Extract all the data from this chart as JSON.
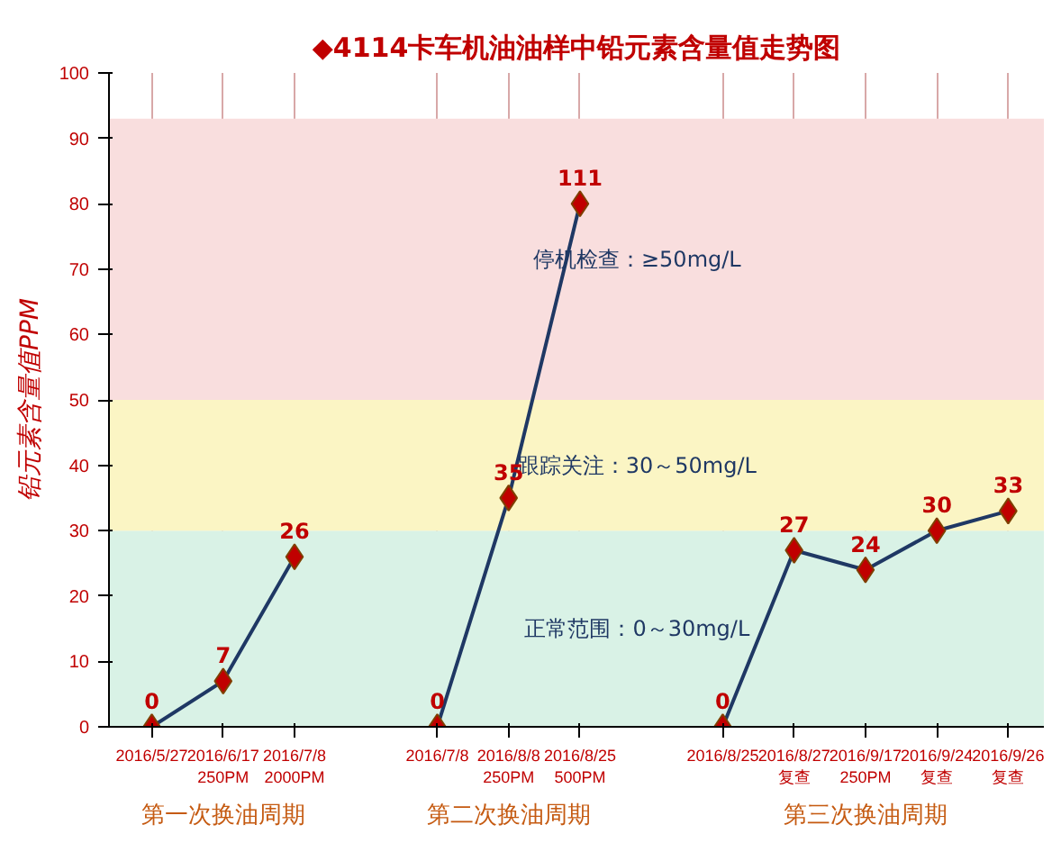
{
  "chart_data": {
    "type": "line",
    "title": "◆4114卡车机油油样中铅元素含量值走势图",
    "ylabel": "铅元素含量值PPM",
    "categories": [
      "2016/5/27",
      "2016/6/17\n250PM",
      "2016/7/8\n2000PM",
      null,
      "2016/7/8",
      "2016/8/8\n250PM",
      "2016/8/25\n500PM",
      null,
      "2016/8/25",
      "2016/8/27\n复查",
      "2016/9/17\n250PM",
      "2016/9/24\n复查",
      "2016/9/26\n复查"
    ],
    "series": [
      {
        "color": "#1f3864",
        "values": [
          0,
          7,
          26,
          null,
          0,
          35,
          80,
          null,
          0,
          27,
          24,
          30,
          33
        ],
        "colors": [
          "#c00000",
          "#c00000",
          "#c00000",
          null,
          "#c00000",
          "#c00000",
          "#c00000",
          null,
          "#c00000",
          "#c00000",
          "#c00000",
          "#c00000",
          "#c00000"
        ],
        "value_labels": [
          "0",
          "7",
          "26",
          null,
          "0",
          "35",
          null,
          null,
          "0",
          "27",
          "24",
          "30",
          "33"
        ]
      }
    ],
    "ylim": [
      0,
      100
    ],
    "yticks": [
      0,
      10,
      20,
      30,
      40,
      50,
      60,
      70,
      80,
      90,
      100
    ],
    "bands": [
      {
        "axis": "y",
        "from": 0,
        "to": 30,
        "label": "正常范围：0～30mg/L",
        "color": "#d9f2e6"
      },
      {
        "axis": "y",
        "from": 30,
        "to": 50,
        "label": "跟踪关注：30～50mg/L",
        "color": "#fbf5c4"
      },
      {
        "axis": "y",
        "from": 50,
        "to": 93,
        "label": "停机检查：≥50mg/L",
        "color": "#f9dede"
      }
    ],
    "annotations": [
      "第一次换油周期",
      "第二次换油周期",
      "第三次换油周期",
      {
        "text": "111",
        "x": "2016/8/25\n500PM",
        "y": 80
      }
    ],
    "grid": "x",
    "marker": "diamond",
    "line_style": "solid"
  }
}
